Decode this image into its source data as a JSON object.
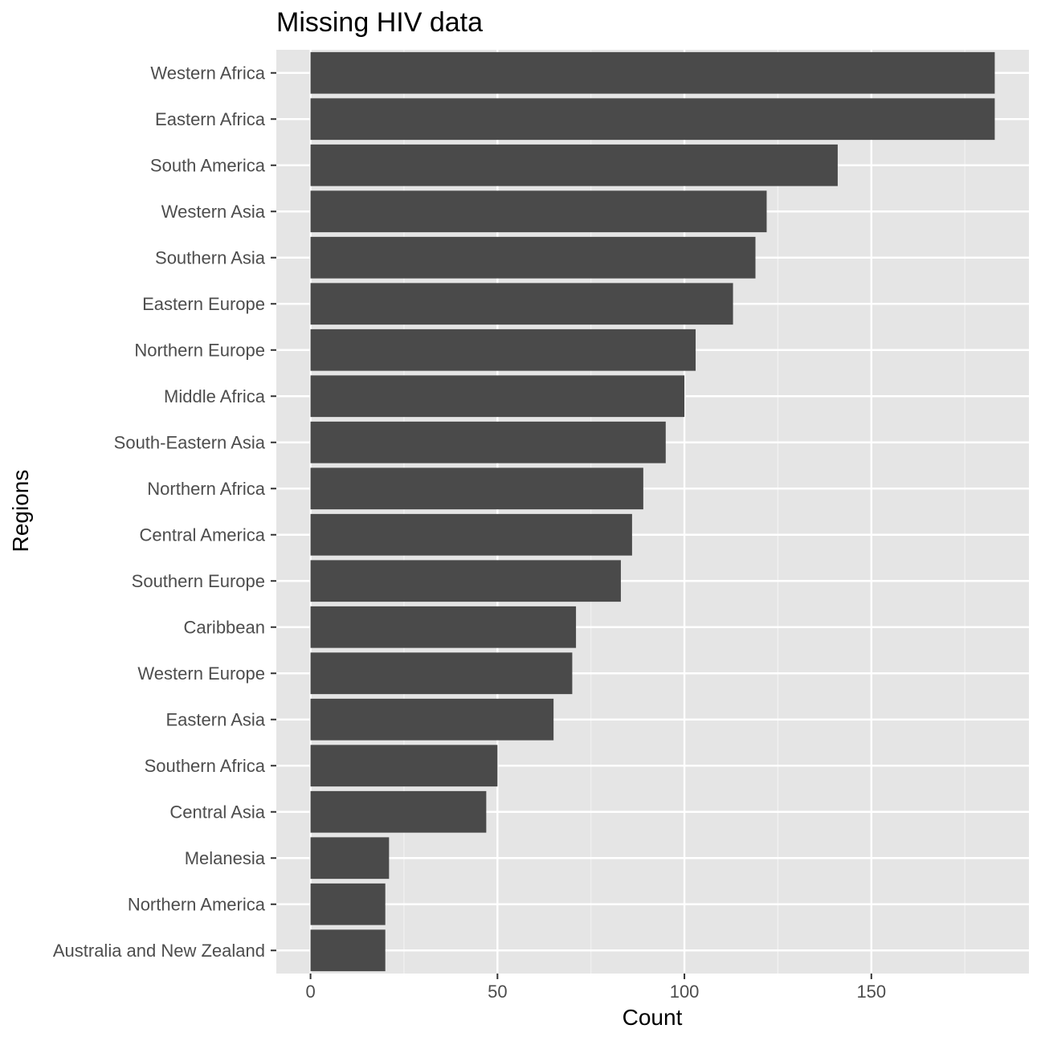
{
  "chart_data": {
    "type": "bar",
    "orientation": "horizontal",
    "title": "Missing HIV data",
    "xlabel": "Count",
    "ylabel": "Regions",
    "categories": [
      "Western Africa",
      "Eastern Africa",
      "South America",
      "Western Asia",
      "Southern Asia",
      "Eastern Europe",
      "Northern Europe",
      "Middle Africa",
      "South-Eastern Asia",
      "Northern Africa",
      "Central America",
      "Southern Europe",
      "Caribbean",
      "Western Europe",
      "Eastern Asia",
      "Southern Africa",
      "Central Asia",
      "Melanesia",
      "Northern America",
      "Australia and New Zealand"
    ],
    "values": [
      183,
      183,
      141,
      122,
      119,
      113,
      103,
      100,
      95,
      89,
      86,
      83,
      71,
      70,
      65,
      50,
      47,
      21,
      20,
      20
    ],
    "x_ticks": [
      "0",
      "50",
      "100",
      "150"
    ],
    "xlim": [
      -9.15,
      192.15
    ],
    "grid": true,
    "legend": "none",
    "colors": {
      "bar": "#4a4a4a",
      "panel_background": "#e5e5e5",
      "grid_major": "#ffffff",
      "grid_minor": "#f2f2f2",
      "tick_text": "#4d4d4d",
      "tick_mark": "#333333"
    }
  }
}
